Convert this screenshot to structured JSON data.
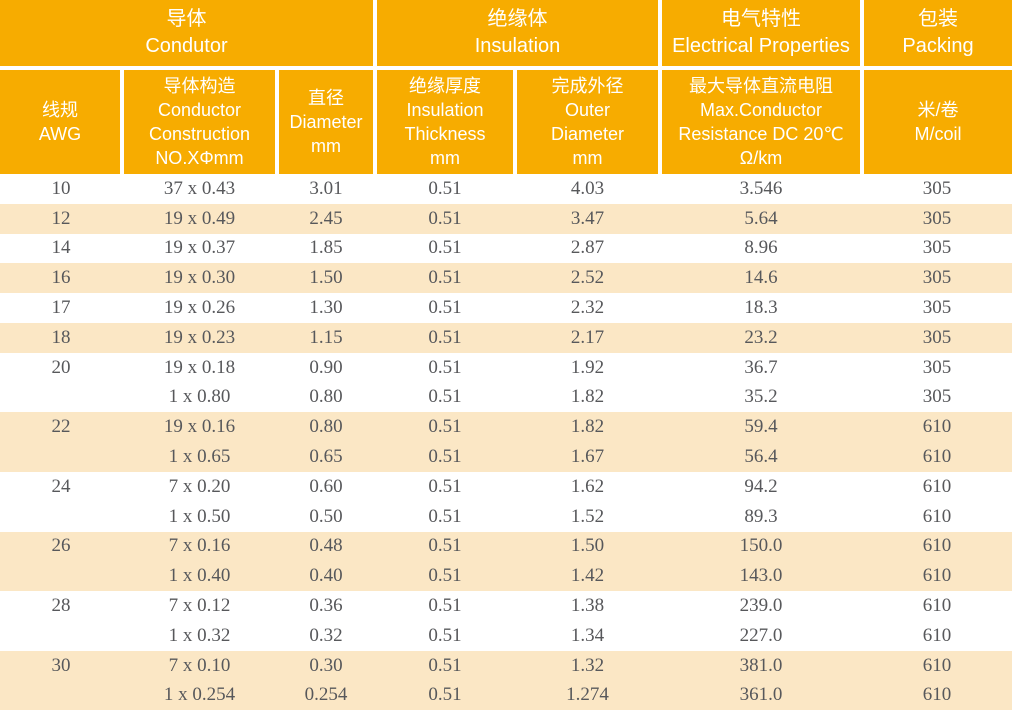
{
  "meta": {
    "description": "Hook-up wire AWG specification table"
  },
  "colors": {
    "header_bg": "#F7AC00",
    "stripe_bg": "#FBE7C5",
    "row_bg": "#FFFFFF",
    "header_text": "#FFFFFF",
    "data_text": "#57585B"
  },
  "header": {
    "groups": [
      {
        "zh": "导体",
        "en": "Condutor"
      },
      {
        "zh": "绝缘体",
        "en": "Insulation"
      },
      {
        "zh": "电气特性",
        "en": "Electrical Properties"
      },
      {
        "zh": "包装",
        "en": "Packing"
      }
    ],
    "columns": [
      {
        "lines": [
          "线规",
          "AWG"
        ]
      },
      {
        "lines": [
          "导体构造",
          "Conductor",
          "Construction",
          "NO.XΦmm"
        ]
      },
      {
        "lines": [
          "直径",
          "Diameter",
          "mm"
        ]
      },
      {
        "lines": [
          "绝缘厚度",
          "Insulation",
          "Thickness",
          "mm"
        ]
      },
      {
        "lines": [
          "完成外径",
          "Outer",
          "Diameter",
          "mm"
        ]
      },
      {
        "lines": [
          "最大导体直流电阻",
          "Max.Conductor",
          "Resistance DC 20℃",
          "Ω/km"
        ]
      },
      {
        "lines": [
          "米/卷",
          "M/coil"
        ]
      }
    ]
  },
  "rows": [
    {
      "awg": "10",
      "construction": "37 x 0.43",
      "diameter": "3.01",
      "insulation_thickness": "0.51",
      "outer_diameter": "4.03",
      "resistance": "3.546",
      "m_per_coil": "305",
      "stripe": false
    },
    {
      "awg": "12",
      "construction": "19 x 0.49",
      "diameter": "2.45",
      "insulation_thickness": "0.51",
      "outer_diameter": "3.47",
      "resistance": "5.64",
      "m_per_coil": "305",
      "stripe": true
    },
    {
      "awg": "14",
      "construction": "19 x 0.37",
      "diameter": "1.85",
      "insulation_thickness": "0.51",
      "outer_diameter": "2.87",
      "resistance": "8.96",
      "m_per_coil": "305",
      "stripe": false
    },
    {
      "awg": "16",
      "construction": "19 x 0.30",
      "diameter": "1.50",
      "insulation_thickness": "0.51",
      "outer_diameter": "2.52",
      "resistance": "14.6",
      "m_per_coil": "305",
      "stripe": true
    },
    {
      "awg": "17",
      "construction": "19 x 0.26",
      "diameter": "1.30",
      "insulation_thickness": "0.51",
      "outer_diameter": "2.32",
      "resistance": "18.3",
      "m_per_coil": "305",
      "stripe": false
    },
    {
      "awg": "18",
      "construction": "19 x 0.23",
      "diameter": "1.15",
      "insulation_thickness": "0.51",
      "outer_diameter": "2.17",
      "resistance": "23.2",
      "m_per_coil": "305",
      "stripe": true
    },
    {
      "awg": "20",
      "construction": "19 x 0.18",
      "diameter": "0.90",
      "insulation_thickness": "0.51",
      "outer_diameter": "1.92",
      "resistance": "36.7",
      "m_per_coil": "305",
      "stripe": false
    },
    {
      "awg": "",
      "construction": "1 x 0.80",
      "diameter": "0.80",
      "insulation_thickness": "0.51",
      "outer_diameter": "1.82",
      "resistance": "35.2",
      "m_per_coil": "305",
      "stripe": false
    },
    {
      "awg": "22",
      "construction": "19 x 0.16",
      "diameter": "0.80",
      "insulation_thickness": "0.51",
      "outer_diameter": "1.82",
      "resistance": "59.4",
      "m_per_coil": "610",
      "stripe": true
    },
    {
      "awg": "",
      "construction": "1 x 0.65",
      "diameter": "0.65",
      "insulation_thickness": "0.51",
      "outer_diameter": "1.67",
      "resistance": "56.4",
      "m_per_coil": "610",
      "stripe": true
    },
    {
      "awg": "24",
      "construction": "7 x 0.20",
      "diameter": "0.60",
      "insulation_thickness": "0.51",
      "outer_diameter": "1.62",
      "resistance": "94.2",
      "m_per_coil": "610",
      "stripe": false
    },
    {
      "awg": "",
      "construction": "1 x 0.50",
      "diameter": "0.50",
      "insulation_thickness": "0.51",
      "outer_diameter": "1.52",
      "resistance": "89.3",
      "m_per_coil": "610",
      "stripe": false
    },
    {
      "awg": "26",
      "construction": "7 x 0.16",
      "diameter": "0.48",
      "insulation_thickness": "0.51",
      "outer_diameter": "1.50",
      "resistance": "150.0",
      "m_per_coil": "610",
      "stripe": true
    },
    {
      "awg": "",
      "construction": "1 x 0.40",
      "diameter": "0.40",
      "insulation_thickness": "0.51",
      "outer_diameter": "1.42",
      "resistance": "143.0",
      "m_per_coil": "610",
      "stripe": true
    },
    {
      "awg": "28",
      "construction": "7 x 0.12",
      "diameter": "0.36",
      "insulation_thickness": "0.51",
      "outer_diameter": "1.38",
      "resistance": "239.0",
      "m_per_coil": "610",
      "stripe": false
    },
    {
      "awg": "",
      "construction": "1 x 0.32",
      "diameter": "0.32",
      "insulation_thickness": "0.51",
      "outer_diameter": "1.34",
      "resistance": "227.0",
      "m_per_coil": "610",
      "stripe": false
    },
    {
      "awg": "30",
      "construction": "7 x 0.10",
      "diameter": "0.30",
      "insulation_thickness": "0.51",
      "outer_diameter": "1.32",
      "resistance": "381.0",
      "m_per_coil": "610",
      "stripe": true
    },
    {
      "awg": "",
      "construction": "1 x 0.254",
      "diameter": "0.254",
      "insulation_thickness": "0.51",
      "outer_diameter": "1.274",
      "resistance": "361.0",
      "m_per_coil": "610",
      "stripe": true
    }
  ]
}
